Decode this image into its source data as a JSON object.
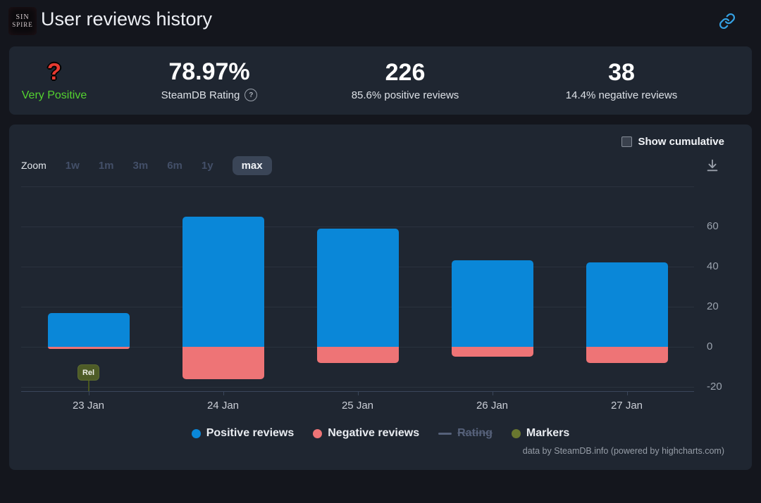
{
  "header": {
    "title": "User reviews history",
    "app_icon": {
      "line1": "SIN",
      "line2": "SPIRE"
    }
  },
  "icons": {
    "header_link": "link-icon",
    "export": "download-icon",
    "rating_help": "circle-question-icon"
  },
  "stats": {
    "rating_emoji": "?",
    "rating_label": "Very Positive",
    "steamdb_rating": {
      "value": "78.97%",
      "label": "SteamDB Rating"
    },
    "positive": {
      "value": "226",
      "label": "85.6% positive reviews"
    },
    "negative": {
      "value": "38",
      "label": "14.4% negative reviews"
    }
  },
  "chart_controls": {
    "show_cumulative_label": "Show cumulative",
    "show_cumulative_checked": false,
    "zoom_label": "Zoom",
    "zoom_options": [
      "1w",
      "1m",
      "3m",
      "6m",
      "1y",
      "max"
    ],
    "zoom_selected": "max"
  },
  "chart_data": {
    "type": "bar",
    "title": "",
    "categories": [
      "23 Jan",
      "24 Jan",
      "25 Jan",
      "26 Jan",
      "27 Jan"
    ],
    "series": [
      {
        "name": "Positive reviews",
        "color": "#0a87d8",
        "values": [
          17,
          65,
          59,
          43,
          42
        ]
      },
      {
        "name": "Negative reviews",
        "color": "#ee7476",
        "values": [
          -1,
          -16,
          -8,
          -5,
          -8
        ]
      }
    ],
    "stacking": "positive up, negative down from zero baseline",
    "ylim": [
      -22,
      80
    ],
    "gridline_values": [
      80,
      60,
      40,
      20,
      0,
      -20
    ],
    "ytick_labels": [
      "60",
      "40",
      "20",
      "0",
      "-20"
    ],
    "grid": true,
    "legend_position": "bottom-center",
    "markers": [
      {
        "label": "Rel",
        "category": "23 Jan"
      }
    ],
    "legend": [
      {
        "label": "Positive reviews",
        "color": "#0a87d8",
        "shape": "circle",
        "disabled": false
      },
      {
        "label": "Negative reviews",
        "color": "#ee7476",
        "shape": "circle",
        "disabled": false
      },
      {
        "label": "Rating",
        "color": "#56617a",
        "shape": "line",
        "disabled": true
      },
      {
        "label": "Markers",
        "color": "#69772f",
        "shape": "circle",
        "disabled": false
      }
    ],
    "credit": "data by SteamDB.info (powered by highcharts.com)"
  }
}
